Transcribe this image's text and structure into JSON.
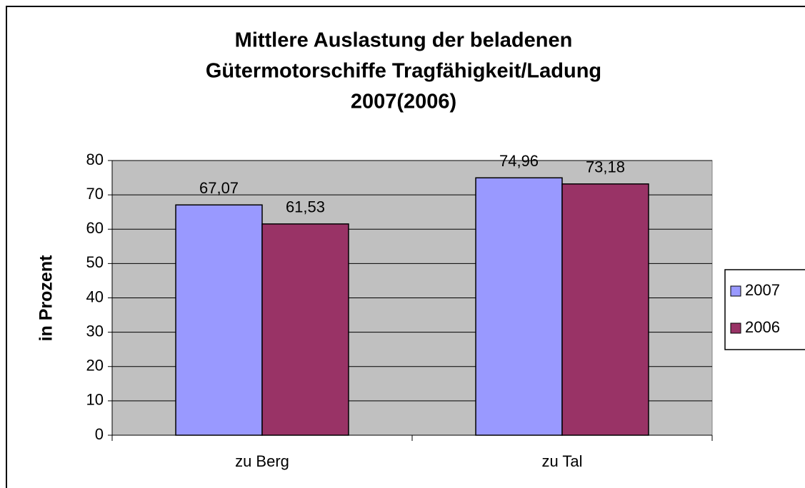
{
  "chart_data": {
    "type": "bar",
    "title": [
      "Mittlere Auslastung der beladenen",
      "Gütermotorschiffe Tragfähigkeit/Ladung",
      "2007(2006)"
    ],
    "y_label": "in Prozent",
    "categories": [
      "zu Berg",
      "zu Tal"
    ],
    "series": [
      {
        "name": "2007",
        "color": "#9999ff",
        "values": [
          67.07,
          74.96
        ],
        "value_labels": [
          "67,07",
          "74,96"
        ]
      },
      {
        "name": "2006",
        "color": "#993366",
        "values": [
          61.53,
          73.18
        ],
        "value_labels": [
          "61,53",
          "73,18"
        ]
      }
    ],
    "ylim": [
      0,
      80
    ],
    "yticks": [
      0,
      10,
      20,
      30,
      40,
      50,
      60,
      70,
      80
    ],
    "grid": true,
    "legend": "right"
  }
}
